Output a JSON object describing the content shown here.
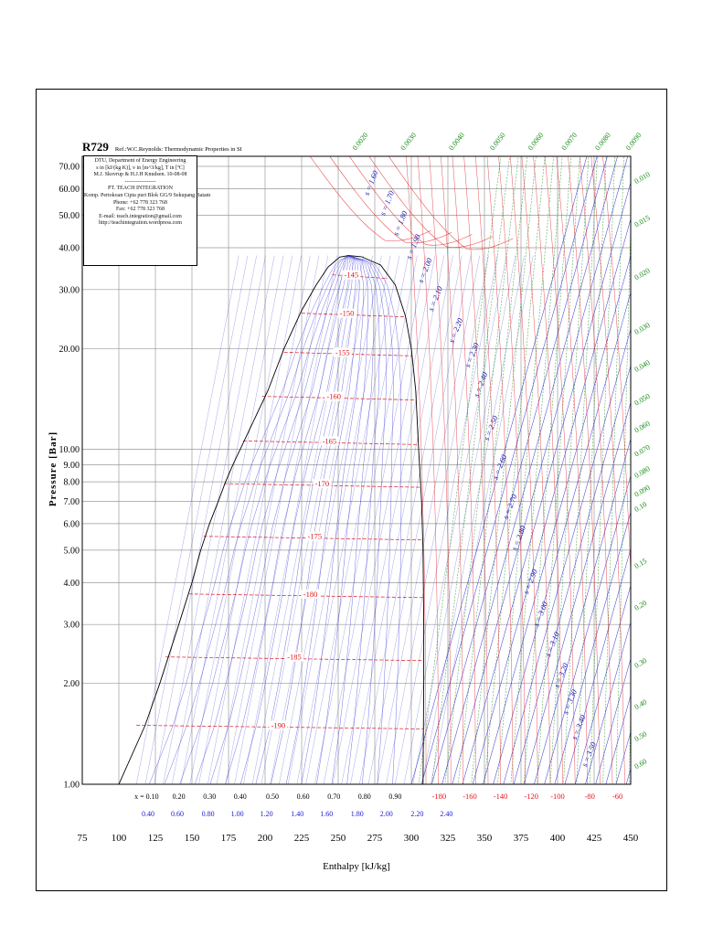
{
  "chart_data": {
    "type": "line",
    "title": "R729",
    "subtitle": "Ref.:W.C.Reynolds: Thermodynamic Properties in SI",
    "info_lines": [
      "DTU, Department of Energy Engineering",
      "s in [kJ/(kg K)], v in [m^3/kg], T in [ºC]",
      "M.J. Skovrup & H.J.H Knudsen. 10-08-08",
      "-----------------",
      "PT. TEACH INTEGRATION",
      "Komp. Pertokoan Cipta puri Blok GG/9 Sekupang Batam",
      "Phone: +62 778 323 768",
      "Fax: +62 778 323 768",
      "E-mail: teach.integration@gmail.com",
      "http://teachintegration.wordpress.com"
    ],
    "xlabel": "Enthalpy [kJ/kg]",
    "ylabel": "Pressure [Bar]",
    "xlim": [
      75,
      450
    ],
    "ylim": [
      1,
      75
    ],
    "yscale": "log",
    "x_ticks": [
      "75",
      "100",
      "125",
      "150",
      "175",
      "200",
      "225",
      "250",
      "275",
      "300",
      "325",
      "350",
      "375",
      "400",
      "425",
      "450"
    ],
    "y_ticks": [
      {
        "value": 1,
        "label": "1.00"
      },
      {
        "value": 2,
        "label": "2.00"
      },
      {
        "value": 3,
        "label": "3.00"
      },
      {
        "value": 4,
        "label": "4.00"
      },
      {
        "value": 5,
        "label": "5.00"
      },
      {
        "value": 6,
        "label": "6.00"
      },
      {
        "value": 7,
        "label": "7.00"
      },
      {
        "value": 8,
        "label": "8.00"
      },
      {
        "value": 9,
        "label": "9.00"
      },
      {
        "value": 10,
        "label": "10.00"
      },
      {
        "value": 20,
        "label": "20.00"
      },
      {
        "value": 30,
        "label": "30.00"
      },
      {
        "value": 40,
        "label": "40.00"
      },
      {
        "value": 50,
        "label": "50.00"
      },
      {
        "value": 60,
        "label": "60.00"
      },
      {
        "value": 70,
        "label": "70.00"
      }
    ],
    "saturation_dome": {
      "critical_point": {
        "h": 257,
        "p": 37.9
      },
      "liquid": [
        [
          100,
          1.0
        ],
        [
          118,
          1.5
        ],
        [
          128,
          2.0
        ],
        [
          141,
          3.0
        ],
        [
          150,
          4.0
        ],
        [
          156,
          5.0
        ],
        [
          162,
          6.0
        ],
        [
          168,
          7.0
        ],
        [
          173,
          8.0
        ],
        [
          178,
          9.0
        ],
        [
          183,
          10.0
        ],
        [
          202,
          15.0
        ],
        [
          213,
          20.0
        ],
        [
          225,
          26.0
        ],
        [
          235,
          31.0
        ],
        [
          243,
          35.0
        ],
        [
          251,
          37.5
        ],
        [
          257,
          37.9
        ]
      ],
      "vapor": [
        [
          257,
          37.9
        ],
        [
          266,
          37.6
        ],
        [
          279,
          35.5
        ],
        [
          289,
          31.0
        ],
        [
          296,
          25.0
        ],
        [
          300,
          20.0
        ],
        [
          303,
          15.0
        ],
        [
          305,
          10.0
        ],
        [
          307,
          7.0
        ],
        [
          308,
          5.0
        ],
        [
          308.5,
          3.0
        ],
        [
          308.5,
          2.0
        ],
        [
          308,
          1.0
        ]
      ]
    },
    "isotherms": [
      {
        "label": "-145",
        "t": -145,
        "p": 33.2,
        "h_liq": 246,
        "label_h": 259
      },
      {
        "label": "-150",
        "t": -150,
        "p": 25.5,
        "h_liq": 225,
        "label_h": 256
      },
      {
        "label": "-155",
        "t": -155,
        "p": 19.5,
        "h_liq": 213,
        "label_h": 253
      },
      {
        "label": "-160",
        "t": -160,
        "p": 14.4,
        "h_liq": 198,
        "label_h": 247
      },
      {
        "label": "-165",
        "t": -165,
        "p": 10.6,
        "h_liq": 185,
        "label_h": 244
      },
      {
        "label": "-170",
        "t": -170,
        "p": 7.9,
        "h_liq": 172,
        "label_h": 239
      },
      {
        "label": "-175",
        "t": -175,
        "p": 5.5,
        "h_liq": 158,
        "label_h": 234
      },
      {
        "label": "-180",
        "t": -180,
        "p": 3.7,
        "h_liq": 148,
        "label_h": 231
      },
      {
        "label": "-185",
        "t": -185,
        "p": 2.4,
        "h_liq": 132,
        "label_h": 220
      },
      {
        "label": "-190",
        "t": -190,
        "p": 1.5,
        "h_liq": 112,
        "label_h": 209
      }
    ],
    "bottom_isotherm_labels": [
      {
        "label": "-180",
        "h": 319
      },
      {
        "label": "-160",
        "h": 340
      },
      {
        "label": "-140",
        "h": 361
      },
      {
        "label": "-120",
        "h": 382
      },
      {
        "label": "-100",
        "h": 400
      },
      {
        "label": "-80",
        "h": 422
      },
      {
        "label": "-60",
        "h": 441
      }
    ],
    "quality_labels": [
      "x = 0.10",
      "0.20",
      "0.30",
      "0.40",
      "0.50",
      "0.60",
      "0.70",
      "0.80",
      "0.90"
    ],
    "quality_label_h": [
      119,
      141,
      162,
      183,
      205,
      226,
      247,
      268,
      289
    ],
    "entropy_bottom_labels": [
      "0.40",
      "0.60",
      "0.80",
      "1.00",
      "1.20",
      "1.40",
      "1.60",
      "1.80",
      "2.00",
      "2.20",
      "2.40"
    ],
    "entropy_bottom_h": [
      120,
      140,
      161,
      181,
      201,
      222,
      242,
      263,
      283,
      304,
      324
    ],
    "isentropes": [
      {
        "label": "s = 1.60",
        "h": 274,
        "p": 62
      },
      {
        "label": "s = 1.70",
        "h": 285,
        "p": 54
      },
      {
        "label": "s = 1.80",
        "h": 294,
        "p": 47
      },
      {
        "label": "s = 1.90",
        "h": 303,
        "p": 40
      },
      {
        "label": "s = 2.00",
        "h": 311,
        "p": 34
      },
      {
        "label": "s = 2.10",
        "h": 318,
        "p": 28
      },
      {
        "label": "s = 2.20",
        "h": 332,
        "p": 22.5
      },
      {
        "label": "s = 2.30",
        "h": 343,
        "p": 19
      },
      {
        "label": "s = 2.40",
        "h": 349,
        "p": 15.5
      },
      {
        "label": "s = 2.50",
        "h": 356,
        "p": 11.5
      },
      {
        "label": "s = 2.60",
        "h": 362,
        "p": 8.8
      },
      {
        "label": "s = 2.70",
        "h": 369,
        "p": 6.7
      },
      {
        "label": "s = 2.80",
        "h": 375,
        "p": 5.4
      },
      {
        "label": "s = 2.90",
        "h": 383,
        "p": 4.0
      },
      {
        "label": "s = 3.00",
        "h": 390,
        "p": 3.2
      },
      {
        "label": "s = 3.10",
        "h": 398,
        "p": 2.6
      },
      {
        "label": "s = 3.20",
        "h": 404,
        "p": 2.1
      },
      {
        "label": "s = 3.30",
        "h": 410,
        "p": 1.75
      },
      {
        "label": "s = 3.40",
        "h": 416,
        "p": 1.47
      },
      {
        "label": "s = 3.50",
        "h": 423,
        "p": 1.22
      }
    ],
    "volume_top_labels": [
      {
        "label": "0.0020",
        "h": 262
      },
      {
        "label": "0.0030",
        "h": 295
      },
      {
        "label": "0.0040",
        "h": 328
      },
      {
        "label": "0.0050",
        "h": 356
      },
      {
        "label": "0.0060",
        "h": 382
      },
      {
        "label": "0.0070",
        "h": 405
      },
      {
        "label": "0.0080",
        "h": 428
      },
      {
        "label": "0.0090",
        "h": 449
      }
    ],
    "volume_right_labels": [
      {
        "label": "0.010",
        "p": 62
      },
      {
        "label": "0.015",
        "p": 46
      },
      {
        "label": "0.020",
        "p": 32
      },
      {
        "label": "0.030",
        "p": 22
      },
      {
        "label": "0.040",
        "p": 17
      },
      {
        "label": "0.050",
        "p": 13.5
      },
      {
        "label": "0.060",
        "p": 11.2
      },
      {
        "label": "0.070",
        "p": 9.5
      },
      {
        "label": "0.080",
        "p": 8.2
      },
      {
        "label": "0.090",
        "p": 7.2
      },
      {
        "label": "0.10",
        "p": 6.5
      },
      {
        "label": "0.15",
        "p": 4.4
      },
      {
        "label": "0.20",
        "p": 3.3
      },
      {
        "label": "0.30",
        "p": 2.22
      },
      {
        "label": "0.40",
        "p": 1.67
      },
      {
        "label": "0.50",
        "p": 1.34
      },
      {
        "label": "0.60",
        "p": 1.11
      }
    ],
    "colors": {
      "saturation": "#000000",
      "isotherm": "#e0151b",
      "isentrope": "#1a1ad0",
      "isochore": "#108a10",
      "quality": "#3a3ad8",
      "grid": "#9a9a9a"
    }
  }
}
